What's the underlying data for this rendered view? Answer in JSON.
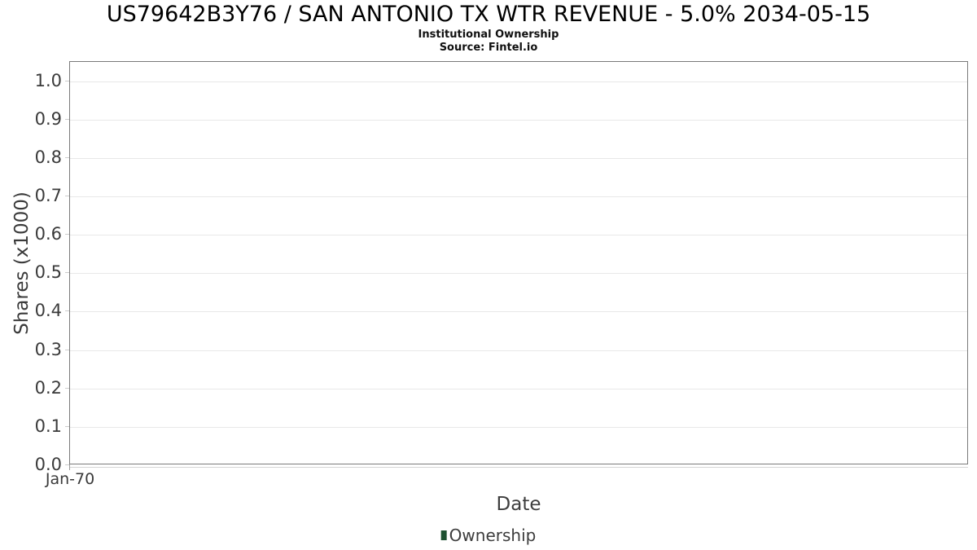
{
  "header": {
    "title": "US79642B3Y76 / SAN ANTONIO TX WTR REVENUE - 5.0% 2034-05-15",
    "subtitle": "Institutional Ownership",
    "source": "Source: Fintel.io"
  },
  "chart_data": {
    "type": "line",
    "title": "US79642B3Y76 / SAN ANTONIO TX WTR REVENUE - 5.0% 2034-05-15",
    "subtitle": "Institutional Ownership",
    "source": "Source: Fintel.io",
    "xlabel": "Date",
    "ylabel": "Shares (x1000)",
    "x_ticks": [
      "Jan-70"
    ],
    "y_ticks": [
      0.0,
      0.1,
      0.2,
      0.3,
      0.4,
      0.5,
      0.6,
      0.7,
      0.8,
      0.9,
      1.0
    ],
    "ylim": [
      0.0,
      1.05
    ],
    "grid": true,
    "legend_position": "bottom",
    "series": [
      {
        "name": "Ownership",
        "color": "#1d5131",
        "x": [],
        "y": []
      }
    ]
  }
}
